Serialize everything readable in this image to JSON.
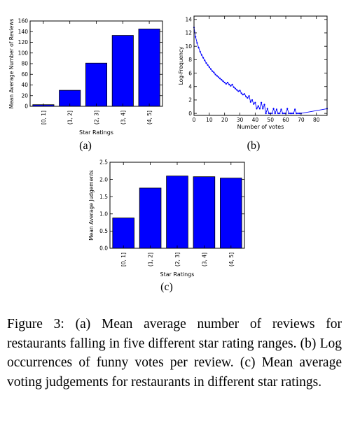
{
  "figure": {
    "subcaptions": [
      "(a)",
      "(b)",
      "(c)"
    ],
    "caption": "Figure 3: (a) Mean average number of reviews for restaurants falling in five different star rating ranges. (b) Log occurrences of funny votes per review. (c) Mean average voting judgements for restaurants in different star ratings."
  },
  "chart_data": [
    {
      "id": "a",
      "type": "bar",
      "categories": [
        "[0, 1]",
        "(1, 2]",
        "(2, 3]",
        "(3, 4]",
        "(4, 5]"
      ],
      "values": [
        3,
        30,
        81,
        133,
        145
      ],
      "title": "",
      "xlabel": "Star Ratings",
      "ylabel": "Mean Average Number of Reviews",
      "ylim": [
        0,
        160
      ],
      "yticks": [
        0,
        20,
        40,
        60,
        80,
        100,
        120,
        140,
        160
      ],
      "bar_color": "#0000ff",
      "grid": false
    },
    {
      "id": "b",
      "type": "line",
      "title": "",
      "xlabel": "Number of votes",
      "ylabel": "Log-Frequency",
      "xlim": [
        0,
        87
      ],
      "ylim": [
        -0.3,
        14.5
      ],
      "xticks": [
        0,
        10,
        20,
        30,
        40,
        50,
        60,
        70,
        80
      ],
      "yticks": [
        0,
        2,
        4,
        6,
        8,
        10,
        12,
        14
      ],
      "line_color": "#0000ff",
      "grid": false,
      "x": [
        0,
        1,
        2,
        3,
        4,
        5,
        6,
        7,
        8,
        9,
        10,
        11,
        12,
        13,
        14,
        15,
        16,
        17,
        18,
        19,
        20,
        21,
        22,
        23,
        24,
        25,
        26,
        27,
        28,
        29,
        30,
        31,
        32,
        33,
        34,
        35,
        36,
        37,
        38,
        39,
        40,
        41,
        42,
        43,
        44,
        45,
        46,
        47,
        48,
        49,
        50,
        51,
        52,
        53,
        54,
        55,
        56,
        57,
        58,
        59,
        60,
        61,
        62,
        63,
        64,
        65,
        66,
        67,
        68,
        69,
        70,
        87
      ],
      "y": [
        12.8,
        11.4,
        10.5,
        9.8,
        9.2,
        8.7,
        8.3,
        7.9,
        7.5,
        7.2,
        6.9,
        6.6,
        6.3,
        6.1,
        5.8,
        5.6,
        5.4,
        5.2,
        5.0,
        4.8,
        4.6,
        4.4,
        4.6,
        4.3,
        4.1,
        4.3,
        3.9,
        3.7,
        3.5,
        3.3,
        3.4,
        3.0,
        2.8,
        2.9,
        2.5,
        2.3,
        2.6,
        1.7,
        2.0,
        1.4,
        1.6,
        0.7,
        1.1,
        0.7,
        1.6,
        0.7,
        1.3,
        0,
        0.7,
        0,
        0,
        0,
        0.7,
        0,
        0.6,
        0,
        0,
        0.6,
        0,
        0,
        0,
        0.7,
        0,
        0,
        0,
        0,
        0.6,
        0,
        0,
        0,
        0,
        0.7
      ]
    },
    {
      "id": "c",
      "type": "bar",
      "categories": [
        "[0, 1]",
        "(1, 2]",
        "(2, 3]",
        "(3, 4]",
        "(4, 5]"
      ],
      "values": [
        0.88,
        1.75,
        2.1,
        2.08,
        2.04
      ],
      "title": "",
      "xlabel": "Star Ratings",
      "ylabel": "Mean Average Judgements",
      "ylim": [
        0,
        2.5
      ],
      "yticks": [
        0.0,
        0.5,
        1.0,
        1.5,
        2.0,
        2.5
      ],
      "bar_color": "#0000ff",
      "grid": false
    }
  ]
}
